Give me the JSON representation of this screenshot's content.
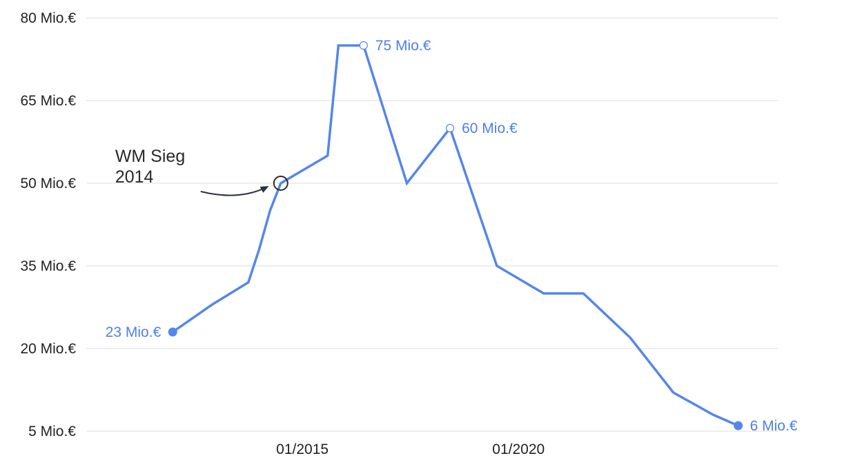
{
  "chart_data": {
    "type": "line",
    "title": "",
    "xlabel": "",
    "ylabel": "",
    "grid": true,
    "series_color": "#5585ee",
    "y_ticks": [
      {
        "value": 80,
        "label": "80 Mio.€"
      },
      {
        "value": 65,
        "label": "65 Mio.€"
      },
      {
        "value": 50,
        "label": "50 Mio.€"
      },
      {
        "value": 35,
        "label": "35 Mio.€"
      },
      {
        "value": 20,
        "label": "20 Mio.€"
      },
      {
        "value": 5,
        "label": "5 Mio.€"
      }
    ],
    "ylim": [
      5,
      80
    ],
    "x_ticks": [
      {
        "value": "2015-01",
        "label": "01/2015"
      },
      {
        "value": "2020-01",
        "label": "01/2020"
      }
    ],
    "xlim": [
      "2010-01",
      "2026-01"
    ],
    "points": [
      {
        "x": "2012-01",
        "y": 23
      },
      {
        "x": "2012-12",
        "y": 28
      },
      {
        "x": "2013-10",
        "y": 32
      },
      {
        "x": "2014-01",
        "y": 38
      },
      {
        "x": "2014-04",
        "y": 45
      },
      {
        "x": "2014-07",
        "y": 50
      },
      {
        "x": "2015-08",
        "y": 55
      },
      {
        "x": "2015-11",
        "y": 75
      },
      {
        "x": "2016-06",
        "y": 75
      },
      {
        "x": "2017-06",
        "y": 50
      },
      {
        "x": "2018-06",
        "y": 60
      },
      {
        "x": "2019-07",
        "y": 35
      },
      {
        "x": "2020-08",
        "y": 30
      },
      {
        "x": "2021-07",
        "y": 30
      },
      {
        "x": "2022-08",
        "y": 22
      },
      {
        "x": "2023-08",
        "y": 12
      },
      {
        "x": "2024-07",
        "y": 8
      },
      {
        "x": "2025-02",
        "y": 6
      }
    ],
    "point_labels": [
      {
        "x": "2012-01",
        "y": 23,
        "text": "23 Mio.€",
        "marker": "filled",
        "side": "left"
      },
      {
        "x": "2016-06",
        "y": 75,
        "text": "75 Mio.€",
        "marker": "hollow",
        "side": "right"
      },
      {
        "x": "2018-06",
        "y": 60,
        "text": "60 Mio.€",
        "marker": "hollow",
        "side": "right"
      },
      {
        "x": "2025-02",
        "y": 6,
        "text": "6 Mio.€",
        "marker": "filled",
        "side": "right"
      }
    ],
    "annotations": [
      {
        "lines": [
          "WM Sieg",
          "2014"
        ],
        "x": "2014-07",
        "y": 50
      }
    ]
  }
}
